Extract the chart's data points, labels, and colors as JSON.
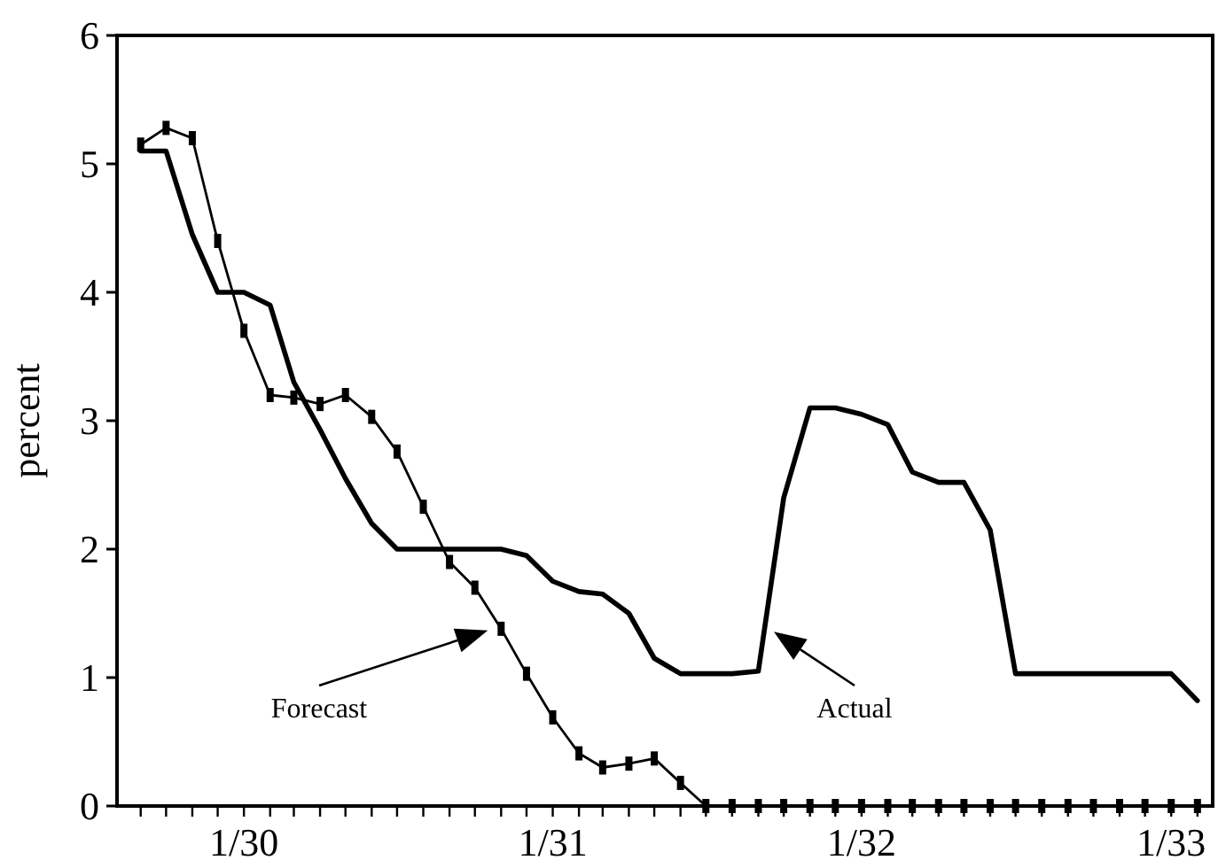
{
  "chart_data": {
    "type": "line",
    "ylabel": "percent",
    "x": [
      "1929-09",
      "1929-10",
      "1929-11",
      "1929-12",
      "1930-01",
      "1930-02",
      "1930-03",
      "1930-04",
      "1930-05",
      "1930-06",
      "1930-07",
      "1930-08",
      "1930-09",
      "1930-10",
      "1930-11",
      "1930-12",
      "1931-01",
      "1931-02",
      "1931-03",
      "1931-04",
      "1931-05",
      "1931-06",
      "1931-07",
      "1931-08",
      "1931-09",
      "1931-10",
      "1931-11",
      "1931-12",
      "1932-01",
      "1932-02",
      "1932-03",
      "1932-04",
      "1932-05",
      "1932-06",
      "1932-07",
      "1932-08",
      "1932-09",
      "1932-10",
      "1932-11",
      "1932-12",
      "1933-01",
      "1933-02"
    ],
    "series": [
      {
        "values": [
          5.1,
          5.1,
          4.45,
          4.0,
          4.0,
          3.9,
          3.3,
          2.93,
          2.55,
          2.2,
          2.0,
          2.0,
          2.0,
          2.0,
          2.0,
          1.95,
          1.75,
          1.67,
          1.65,
          1.5,
          1.15,
          1.03,
          1.03,
          1.03,
          1.05,
          2.4,
          3.1,
          3.1,
          3.05,
          2.97,
          2.6,
          2.52,
          2.52,
          2.15,
          1.03,
          1.03,
          1.03,
          1.03,
          1.03,
          1.03,
          1.03,
          0.82
        ],
        "color": "#000000",
        "marker": "none"
      },
      {
        "values": [
          5.15,
          5.28,
          5.2,
          4.4,
          3.7,
          3.2,
          3.18,
          3.13,
          3.2,
          3.03,
          2.76,
          2.33,
          1.9,
          1.7,
          1.38,
          1.03,
          0.69,
          0.41,
          0.3,
          0.33,
          0.37,
          0.18,
          0,
          0,
          0,
          0,
          0,
          0,
          0,
          0,
          0,
          0,
          0,
          0,
          0,
          0,
          0,
          0,
          0,
          0,
          0,
          0
        ],
        "color": "#000000",
        "marker": "square"
      }
    ],
    "xlim": [
      "1929-08-04",
      "1933-02-19"
    ],
    "xticks": [
      {
        "value": "1929-09",
        "label": null
      },
      {
        "value": "1929-10",
        "label": null
      },
      {
        "value": "1929-11",
        "label": null
      },
      {
        "value": "1929-12",
        "label": null
      },
      {
        "value": "1930-01",
        "label": "1/30"
      },
      {
        "value": "1930-02",
        "label": null
      },
      {
        "value": "1930-03",
        "label": null
      },
      {
        "value": "1930-04",
        "label": null
      },
      {
        "value": "1930-05",
        "label": null
      },
      {
        "value": "1930-06",
        "label": null
      },
      {
        "value": "1930-07",
        "label": null
      },
      {
        "value": "1930-08",
        "label": null
      },
      {
        "value": "1930-09",
        "label": null
      },
      {
        "value": "1930-10",
        "label": null
      },
      {
        "value": "1930-11",
        "label": null
      },
      {
        "value": "1930-12",
        "label": null
      },
      {
        "value": "1931-01",
        "label": "1/31"
      },
      {
        "value": "1931-02",
        "label": null
      },
      {
        "value": "1931-03",
        "label": null
      },
      {
        "value": "1931-04",
        "label": null
      },
      {
        "value": "1931-05",
        "label": null
      },
      {
        "value": "1931-06",
        "label": null
      },
      {
        "value": "1931-07",
        "label": null
      },
      {
        "value": "1931-08",
        "label": null
      },
      {
        "value": "1931-09",
        "label": null
      },
      {
        "value": "1931-10",
        "label": null
      },
      {
        "value": "1931-11",
        "label": null
      },
      {
        "value": "1931-12",
        "label": null
      },
      {
        "value": "1932-01",
        "label": "1/32"
      },
      {
        "value": "1932-02",
        "label": null
      },
      {
        "value": "1932-03",
        "label": null
      },
      {
        "value": "1932-04",
        "label": null
      },
      {
        "value": "1932-05",
        "label": null
      },
      {
        "value": "1932-06",
        "label": null
      },
      {
        "value": "1932-07",
        "label": null
      },
      {
        "value": "1932-08",
        "label": null
      },
      {
        "value": "1932-09",
        "label": null
      },
      {
        "value": "1932-10",
        "label": null
      },
      {
        "value": "1932-11",
        "label": null
      },
      {
        "value": "1932-12",
        "label": null
      },
      {
        "value": "1933-01",
        "label": "1/33"
      },
      {
        "value": "1933-02",
        "label": null
      }
    ],
    "ylim": [
      0,
      6
    ],
    "yticks": [
      0,
      1,
      2,
      3,
      4,
      5,
      6
    ],
    "grid": false,
    "annotations": [
      "Forecast",
      "Actual"
    ]
  }
}
